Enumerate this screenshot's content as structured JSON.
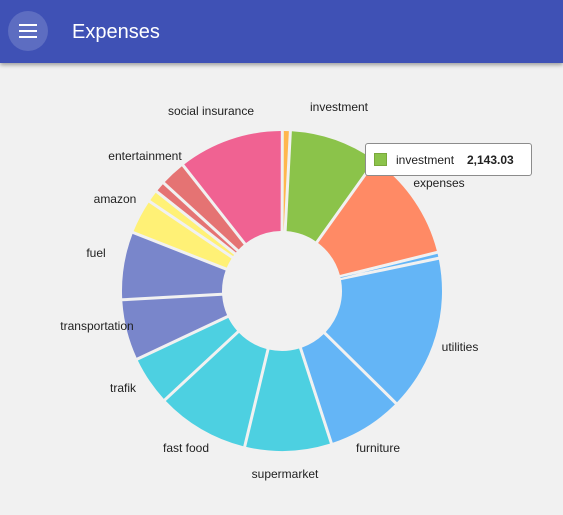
{
  "app": {
    "title": "Expenses",
    "menu_icon": "menu-icon",
    "bar_color": "#3f51b5"
  },
  "tooltip": {
    "label": "investment",
    "value": "2,143.03",
    "color": "#8bc34a"
  },
  "chart_data": {
    "type": "pie",
    "variant": "donut",
    "title": "",
    "start_angle_deg": 3,
    "slices": [
      {
        "label": "investment",
        "value": 9.0,
        "color": "#8bc34a"
      },
      {
        "label": "expenses",
        "value": 11.2,
        "color": "#ff8a65"
      },
      {
        "label": "",
        "value": 0.6,
        "color": "#64b5f6"
      },
      {
        "label": "utilities",
        "value": 15.6,
        "color": "#64b5f6"
      },
      {
        "label": "furniture",
        "value": 7.6,
        "color": "#64b5f6"
      },
      {
        "label": "supermarket",
        "value": 8.7,
        "color": "#4dd0e1"
      },
      {
        "label": "fast food",
        "value": 9.3,
        "color": "#4dd0e1"
      },
      {
        "label": "trafik",
        "value": 4.9,
        "color": "#4dd0e1"
      },
      {
        "label": "transportation",
        "value": 6.1,
        "color": "#7986cb"
      },
      {
        "label": "fuel",
        "value": 6.8,
        "color": "#7986cb"
      },
      {
        "label": "amazon",
        "value": 3.5,
        "color": "#fff176"
      },
      {
        "label": "",
        "value": 1.2,
        "color": "#fff176"
      },
      {
        "label": "",
        "value": 1.1,
        "color": "#e57373"
      },
      {
        "label": "entertainment",
        "value": 2.6,
        "color": "#e57373"
      },
      {
        "label": "social insurance",
        "value": 10.6,
        "color": "#f06292"
      },
      {
        "label": "",
        "value": 0.8,
        "color": "#ffb74d"
      }
    ]
  }
}
